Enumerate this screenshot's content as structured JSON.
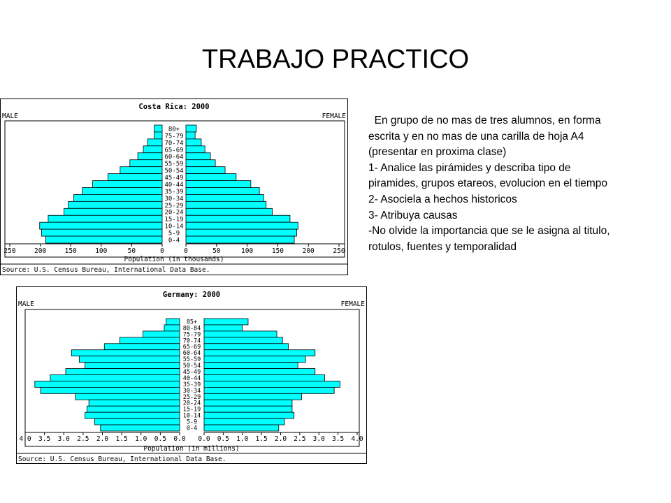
{
  "slide": {
    "title": "TRABAJO PRACTICO"
  },
  "instructions": {
    "lines": [
      "  En grupo de no mas de tres alumnos, en forma",
      "escrita y en no mas de una carilla de hoja A4",
      "(presentar en proxima clase)",
      "1- Analice las pirámides y describa tipo de",
      "piramides, grupos etareos, evolucion en el tiempo",
      "2- Asociela a hechos historicos",
      "3- Atribuya causas",
      "-No olvide la importancia que se le asigna al titulo,",
      "rotulos, fuentes y temporalidad"
    ]
  },
  "colors": {
    "bar_fill": "#00ffff",
    "bar_stroke": "#000000"
  },
  "chart_data": [
    {
      "type": "bar",
      "title": "Costa Rica: 2000",
      "left_label": "MALE",
      "right_label": "FEMALE",
      "xlabel": "Population (in thousands)",
      "source": "Source: U.S. Census Bureau, International Data Base.",
      "xlim": [
        0,
        250
      ],
      "ticks": [
        0,
        50,
        100,
        150,
        200,
        250
      ],
      "tick_labels": [
        "0",
        "50",
        "100",
        "150",
        "200",
        "250"
      ],
      "categories": [
        "80+",
        "75-79",
        "70-74",
        "65-69",
        "60-64",
        "55-59",
        "50-54",
        "45-49",
        "40-44",
        "35-39",
        "30-34",
        "25-29",
        "20-24",
        "15-19",
        "10-14",
        "5-9",
        "0-4"
      ],
      "series": [
        {
          "name": "MALE",
          "values": [
            13,
            13,
            24,
            31,
            40,
            53,
            69,
            89,
            114,
            131,
            145,
            154,
            161,
            187,
            201,
            198,
            191
          ]
        },
        {
          "name": "FEMALE",
          "values": [
            17,
            15,
            25,
            31,
            40,
            48,
            64,
            82,
            106,
            120,
            127,
            131,
            141,
            170,
            183,
            181,
            177
          ]
        }
      ]
    },
    {
      "type": "bar",
      "title": "Germany: 2000",
      "left_label": "MALE",
      "right_label": "FEMALE",
      "xlabel": "Population (in millions)",
      "source": "Source: U.S. Census Bureau, International Data Base.",
      "xlim": [
        0,
        4.0
      ],
      "ticks": [
        0,
        0.5,
        1.0,
        1.5,
        2.0,
        2.5,
        3.0,
        3.5,
        4.0
      ],
      "tick_labels": [
        "0.0",
        "0.5",
        "1.0",
        "1.5",
        "2.0",
        "2.5",
        "3.0",
        "3.5",
        "4.0"
      ],
      "categories": [
        "85+",
        "80-84",
        "75-79",
        "70-74",
        "65-69",
        "60-64",
        "55-59",
        "50-54",
        "45-49",
        "40-44",
        "35-39",
        "30-34",
        "25-29",
        "20-24",
        "15-19",
        "10-14",
        "5-9",
        "0-4"
      ],
      "series": [
        {
          "name": "MALE",
          "values": [
            0.35,
            0.4,
            0.95,
            1.55,
            1.95,
            2.8,
            2.6,
            2.45,
            2.95,
            3.35,
            3.75,
            3.6,
            2.7,
            2.35,
            2.4,
            2.45,
            2.2,
            2.05
          ]
        },
        {
          "name": "FEMALE",
          "values": [
            1.15,
            1.0,
            1.9,
            2.05,
            2.2,
            2.9,
            2.65,
            2.45,
            2.9,
            3.15,
            3.55,
            3.4,
            2.55,
            2.3,
            2.3,
            2.35,
            2.1,
            1.95
          ]
        }
      ]
    }
  ]
}
